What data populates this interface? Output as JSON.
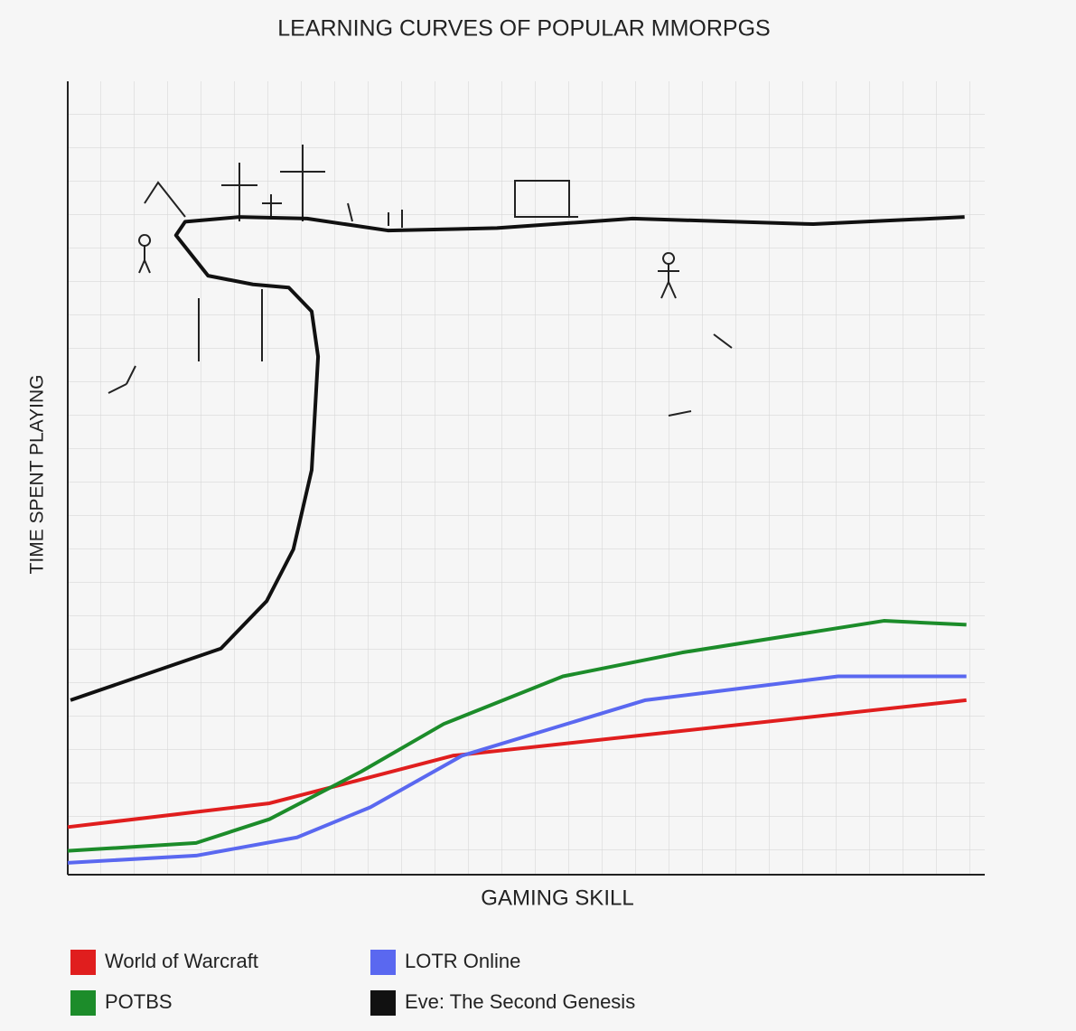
{
  "chart_data": {
    "type": "line",
    "title": "LEARNING CURVES OF POPULAR MMORPGS",
    "x_label": "GAMING SKILL",
    "y_label": "TIME SPENT PLAYING",
    "xlim": [
      0,
      100
    ],
    "ylim": [
      0,
      100
    ],
    "series": [
      {
        "name": "World of Warcraft",
        "color": "#e01e1e",
        "x": [
          0,
          22,
          42,
          98
        ],
        "values": [
          6,
          9,
          15,
          22
        ]
      },
      {
        "name": "POTBS",
        "color": "#1c8c2a",
        "x": [
          0,
          14,
          22,
          32,
          41,
          54,
          67,
          89,
          98
        ],
        "values": [
          3,
          4,
          7,
          13,
          19,
          25,
          28,
          32,
          31.5
        ]
      },
      {
        "name": "LOTR Online",
        "color": "#5a68f0",
        "x": [
          0,
          14,
          25,
          33,
          43,
          63,
          84,
          98
        ],
        "values": [
          1.5,
          2.4,
          4.7,
          8.5,
          15,
          22,
          25,
          25
        ]
      },
      {
        "name": "Eve: The Second Genesis",
        "color": "#111111",
        "x": [
          0.3,
          16.7,
          21.7,
          24.6,
          26.6,
          27.3,
          26.6,
          24.1,
          20.2,
          15.3,
          11.8,
          12.8,
          18.7,
          26.1,
          34.9,
          46.8,
          61.6,
          81.3,
          97.8
        ],
        "values": [
          22.0,
          28.5,
          34.5,
          41.0,
          51.0,
          65.3,
          71.0,
          74.0,
          74.4,
          75.5,
          80.6,
          82.3,
          82.9,
          82.7,
          81.2,
          81.5,
          82.7,
          82.0,
          82.9
        ]
      }
    ]
  }
}
